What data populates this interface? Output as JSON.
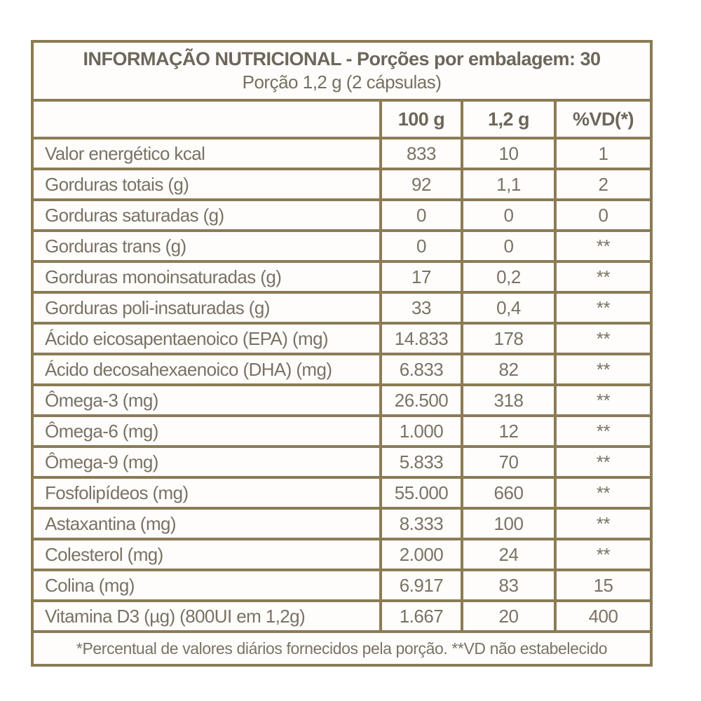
{
  "colors": {
    "border": "#8b7b55",
    "text": "#7a7264",
    "title_text": "#6d665a",
    "background": "#ffffff"
  },
  "table": {
    "title_line1": "INFORMAÇÃO NUTRICIONAL - Porções por embalagem: 30",
    "title_line2": "Porção 1,2 g (2 cápsulas)",
    "columns": [
      "100 g",
      "1,2 g",
      "%VD(*)"
    ],
    "rows": [
      {
        "label": "Valor energético kcal",
        "per_100g": "833",
        "per_portion": "10",
        "vd": "1"
      },
      {
        "label": "Gorduras totais (g)",
        "per_100g": "92",
        "per_portion": "1,1",
        "vd": "2"
      },
      {
        "label": "Gorduras saturadas (g)",
        "per_100g": "0",
        "per_portion": "0",
        "vd": "0"
      },
      {
        "label": "Gorduras trans (g)",
        "per_100g": "0",
        "per_portion": "0",
        "vd": "**"
      },
      {
        "label": "Gorduras monoinsaturadas (g)",
        "per_100g": "17",
        "per_portion": "0,2",
        "vd": "**"
      },
      {
        "label": "Gorduras poli-insaturadas (g)",
        "per_100g": "33",
        "per_portion": "0,4",
        "vd": "**"
      },
      {
        "label": "Ácido eicosapentaenoico (EPA) (mg)",
        "per_100g": "14.833",
        "per_portion": "178",
        "vd": "**"
      },
      {
        "label": "Ácido decosahexaenoico (DHA) (mg)",
        "per_100g": "6.833",
        "per_portion": "82",
        "vd": "**"
      },
      {
        "label": "Ômega-3 (mg)",
        "per_100g": "26.500",
        "per_portion": "318",
        "vd": "**"
      },
      {
        "label": "Ômega-6 (mg)",
        "per_100g": "1.000",
        "per_portion": "12",
        "vd": "**"
      },
      {
        "label": "Ômega-9 (mg)",
        "per_100g": "5.833",
        "per_portion": "70",
        "vd": "**"
      },
      {
        "label": "Fosfolipídeos (mg)",
        "per_100g": "55.000",
        "per_portion": "660",
        "vd": "**"
      },
      {
        "label": "Astaxantina (mg)",
        "per_100g": "8.333",
        "per_portion": "100",
        "vd": "**"
      },
      {
        "label": "Colesterol (mg)",
        "per_100g": "2.000",
        "per_portion": "24",
        "vd": "**"
      },
      {
        "label": "Colina (mg)",
        "per_100g": "6.917",
        "per_portion": "83",
        "vd": "15"
      },
      {
        "label": "Vitamina D3 (µg) (800UI em 1,2g)",
        "per_100g": "1.667",
        "per_portion": "20",
        "vd": "400"
      }
    ],
    "footnote": "*Percentual de valores diários fornecidos pela porção. **VD não estabelecido"
  }
}
